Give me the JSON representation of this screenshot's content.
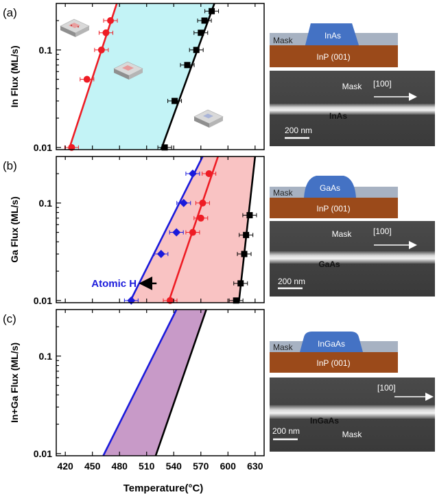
{
  "figure": {
    "panel_labels": [
      "(a)",
      "(b)",
      "(c)"
    ],
    "xlabel": "Temperature(°C)",
    "annotation_atomic_h": "Atomic H"
  },
  "schematics": [
    {
      "mask_label": "Mask",
      "top_label": "InAs",
      "substrate_label": "InP (001)"
    },
    {
      "mask_label": "Mask",
      "top_label": "GaAs",
      "substrate_label": "InP (001)"
    },
    {
      "mask_label": "Mask",
      "top_label": "InGaAs",
      "substrate_label": "InP (001)"
    }
  ],
  "sem_images": [
    {
      "mask_label": "Mask",
      "direction": "[100]",
      "wire_label": "InAs",
      "scale_label": "200 nm"
    },
    {
      "mask_label": "Mask",
      "direction": "[100]",
      "wire_label": "GaAs",
      "scale_label": "200 nm"
    },
    {
      "mask_label": "Mask",
      "direction": "[100]",
      "wire_label": "InGaAs",
      "scale_label": "200 nm"
    }
  ],
  "colors": {
    "red": "#ee1c24",
    "black": "#000000",
    "blue": "#1a1adb",
    "cyan_fill": "#c3f3f6",
    "pink_fill": "#f9c3c3",
    "purple_fill": "#c89ac8",
    "substrate": "#9b4a1a",
    "mask": "#9aa6b7",
    "film": "#4472c4"
  },
  "chart_data": [
    {
      "type": "scatter",
      "panel": "(a)",
      "title": "",
      "xlabel": "Temperature(°C)",
      "ylabel": "In Flux (ML/s)",
      "xlim": [
        410,
        640
      ],
      "ylim": [
        0.0095,
        0.3
      ],
      "yscale": "log",
      "x_ticks": [
        420,
        450,
        480,
        510,
        540,
        570,
        600,
        630
      ],
      "y_ticks": [
        {
          "value": 0.01,
          "label": "0.01"
        },
        {
          "value": 0.1,
          "label": "0.1"
        }
      ],
      "series": [
        {
          "color": "#ee1c24",
          "marker": "circle",
          "points": [
            {
              "x": 427,
              "y": 0.01
            },
            {
              "x": 444,
              "y": 0.05
            },
            {
              "x": 460,
              "y": 0.1
            },
            {
              "x": 465,
              "y": 0.15
            },
            {
              "x": 470,
              "y": 0.2
            }
          ]
        },
        {
          "color": "#000000",
          "marker": "square",
          "points": [
            {
              "x": 530,
              "y": 0.01
            },
            {
              "x": 541,
              "y": 0.03
            },
            {
              "x": 555,
              "y": 0.07
            },
            {
              "x": 565,
              "y": 0.1
            },
            {
              "x": 570,
              "y": 0.15
            },
            {
              "x": 574,
              "y": 0.2
            },
            {
              "x": 582,
              "y": 0.25
            }
          ]
        }
      ],
      "lines": [
        {
          "color": "#ee1c24",
          "from": {
            "x": 424,
            "y": 0.0095
          },
          "to": {
            "x": 477,
            "y": 0.3
          }
        },
        {
          "color": "#000000",
          "from": {
            "x": 526,
            "y": 0.0095
          },
          "to": {
            "x": 585,
            "y": 0.3
          }
        }
      ],
      "fill_between": {
        "color": "#c3f3f6"
      }
    },
    {
      "type": "scatter",
      "panel": "(b)",
      "title": "",
      "xlabel": "Temperature(°C)",
      "ylabel": "Ga Flux (ML/s)",
      "xlim": [
        410,
        640
      ],
      "ylim": [
        0.0095,
        0.3
      ],
      "yscale": "log",
      "x_ticks": [
        420,
        450,
        480,
        510,
        540,
        570,
        600,
        630
      ],
      "y_ticks": [
        {
          "value": 0.01,
          "label": "0.01"
        },
        {
          "value": 0.1,
          "label": "0.1"
        }
      ],
      "series": [
        {
          "color": "#1a1adb",
          "marker": "diamond",
          "points": [
            {
              "x": 493,
              "y": 0.01
            },
            {
              "x": 526,
              "y": 0.03
            },
            {
              "x": 543,
              "y": 0.05
            },
            {
              "x": 551,
              "y": 0.1
            },
            {
              "x": 561,
              "y": 0.2
            }
          ]
        },
        {
          "color": "#ee1c24",
          "marker": "circle",
          "points": [
            {
              "x": 536,
              "y": 0.01
            },
            {
              "x": 561,
              "y": 0.05
            },
            {
              "x": 570,
              "y": 0.07
            },
            {
              "x": 572,
              "y": 0.1
            },
            {
              "x": 579,
              "y": 0.2
            }
          ]
        },
        {
          "color": "#000000",
          "marker": "square",
          "points": [
            {
              "x": 609,
              "y": 0.01
            },
            {
              "x": 614,
              "y": 0.015
            },
            {
              "x": 618,
              "y": 0.03
            },
            {
              "x": 620,
              "y": 0.047
            },
            {
              "x": 624,
              "y": 0.075
            }
          ]
        }
      ],
      "lines": [
        {
          "color": "#1a1adb",
          "from": {
            "x": 491,
            "y": 0.0095
          },
          "to": {
            "x": 572,
            "y": 0.3
          }
        },
        {
          "color": "#ee1c24",
          "from": {
            "x": 534,
            "y": 0.0095
          },
          "to": {
            "x": 589,
            "y": 0.3
          }
        },
        {
          "color": "#000000",
          "from": {
            "x": 612,
            "y": 0.0095
          },
          "to": {
            "x": 630,
            "y": 0.3
          }
        }
      ],
      "fill_between": {
        "color": "#f9c3c3"
      },
      "arrow": {
        "from": {
          "x": 521,
          "y": 0.015
        },
        "to": {
          "x": 505,
          "y": 0.015
        }
      }
    },
    {
      "type": "area",
      "panel": "(c)",
      "title": "",
      "xlabel": "Temperature(°C)",
      "ylabel": "In+Ga Flux (ML/s)",
      "xlim": [
        410,
        640
      ],
      "ylim": [
        0.0095,
        0.3
      ],
      "yscale": "log",
      "x_ticks": [
        420,
        450,
        480,
        510,
        540,
        570,
        600,
        630
      ],
      "x_tick_labels": [
        "420",
        "450",
        "480",
        "510",
        "540",
        "570",
        "600",
        "630"
      ],
      "y_ticks": [
        {
          "value": 0.01,
          "label": "0.01"
        },
        {
          "value": 0.1,
          "label": "0.1"
        }
      ],
      "series": [],
      "lines": [
        {
          "color": "#1a1adb",
          "from": {
            "x": 462,
            "y": 0.0095
          },
          "to": {
            "x": 543,
            "y": 0.3
          }
        },
        {
          "color": "#000000",
          "from": {
            "x": 520,
            "y": 0.0095
          },
          "to": {
            "x": 576,
            "y": 0.3
          }
        }
      ],
      "fill_between": {
        "color": "#c89ac8"
      }
    }
  ]
}
